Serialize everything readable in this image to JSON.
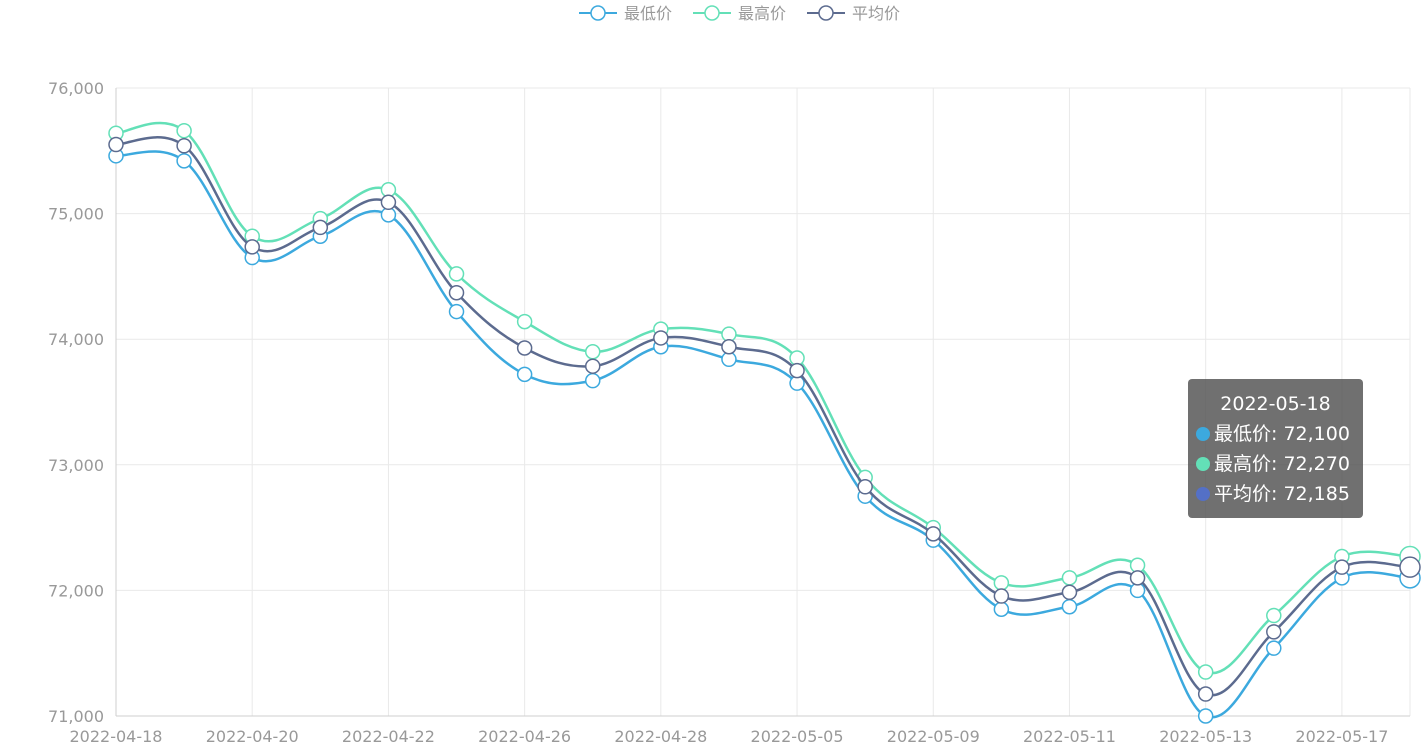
{
  "legend": [
    {
      "label": "最低价",
      "color": "#3ca9de"
    },
    {
      "label": "最高价",
      "color": "#63e0b7"
    },
    {
      "label": "平均价",
      "color": "#5c6b8f"
    }
  ],
  "tooltip": {
    "title": "2022-05-18",
    "rows": [
      {
        "label": "最低价: 72,100",
        "color": "#3ca9de"
      },
      {
        "label": "最高价: 72,270",
        "color": "#63e0b7"
      },
      {
        "label": "平均价: 72,185",
        "color": "#5470c6"
      }
    ]
  },
  "chart_data": {
    "type": "line",
    "smooth": true,
    "grid": true,
    "legend_position": "top-center",
    "ylim": [
      71000,
      76000
    ],
    "yticks": [
      "71,000",
      "72,000",
      "73,000",
      "74,000",
      "75,000",
      "76,000"
    ],
    "xtick_labels": [
      "2022-04-18",
      "2022-04-20",
      "2022-04-22",
      "2022-04-26",
      "2022-04-28",
      "2022-05-05",
      "2022-05-09",
      "2022-05-11",
      "2022-05-13",
      "2022-05-17"
    ],
    "categories": [
      "2022-04-18",
      "2022-04-19",
      "2022-04-20",
      "2022-04-21",
      "2022-04-22",
      "2022-04-25",
      "2022-04-26",
      "2022-04-27",
      "2022-04-28",
      "2022-04-29",
      "2022-05-05",
      "2022-05-06",
      "2022-05-09",
      "2022-05-10",
      "2022-05-11",
      "2022-05-12",
      "2022-05-13",
      "2022-05-16",
      "2022-05-17",
      "2022-05-18"
    ],
    "series": [
      {
        "name": "最低价",
        "color": "#3ca9de",
        "values": [
          75460,
          75420,
          74650,
          74820,
          74990,
          74220,
          73720,
          73670,
          73940,
          73840,
          73650,
          72750,
          72400,
          71850,
          71870,
          72000,
          71000,
          71540,
          72100,
          72100
        ]
      },
      {
        "name": "最高价",
        "color": "#63e0b7",
        "values": [
          75640,
          75660,
          74820,
          74960,
          75190,
          74520,
          74140,
          73900,
          74080,
          74040,
          73850,
          72900,
          72500,
          72060,
          72100,
          72200,
          71350,
          71800,
          72270,
          72270
        ]
      },
      {
        "name": "平均价",
        "color": "#5c6b8f",
        "values": [
          75550,
          75540,
          74735,
          74890,
          75090,
          74370,
          73930,
          73785,
          74010,
          73940,
          73750,
          72825,
          72450,
          71955,
          71985,
          72100,
          71175,
          71670,
          72185,
          72185
        ]
      }
    ]
  }
}
